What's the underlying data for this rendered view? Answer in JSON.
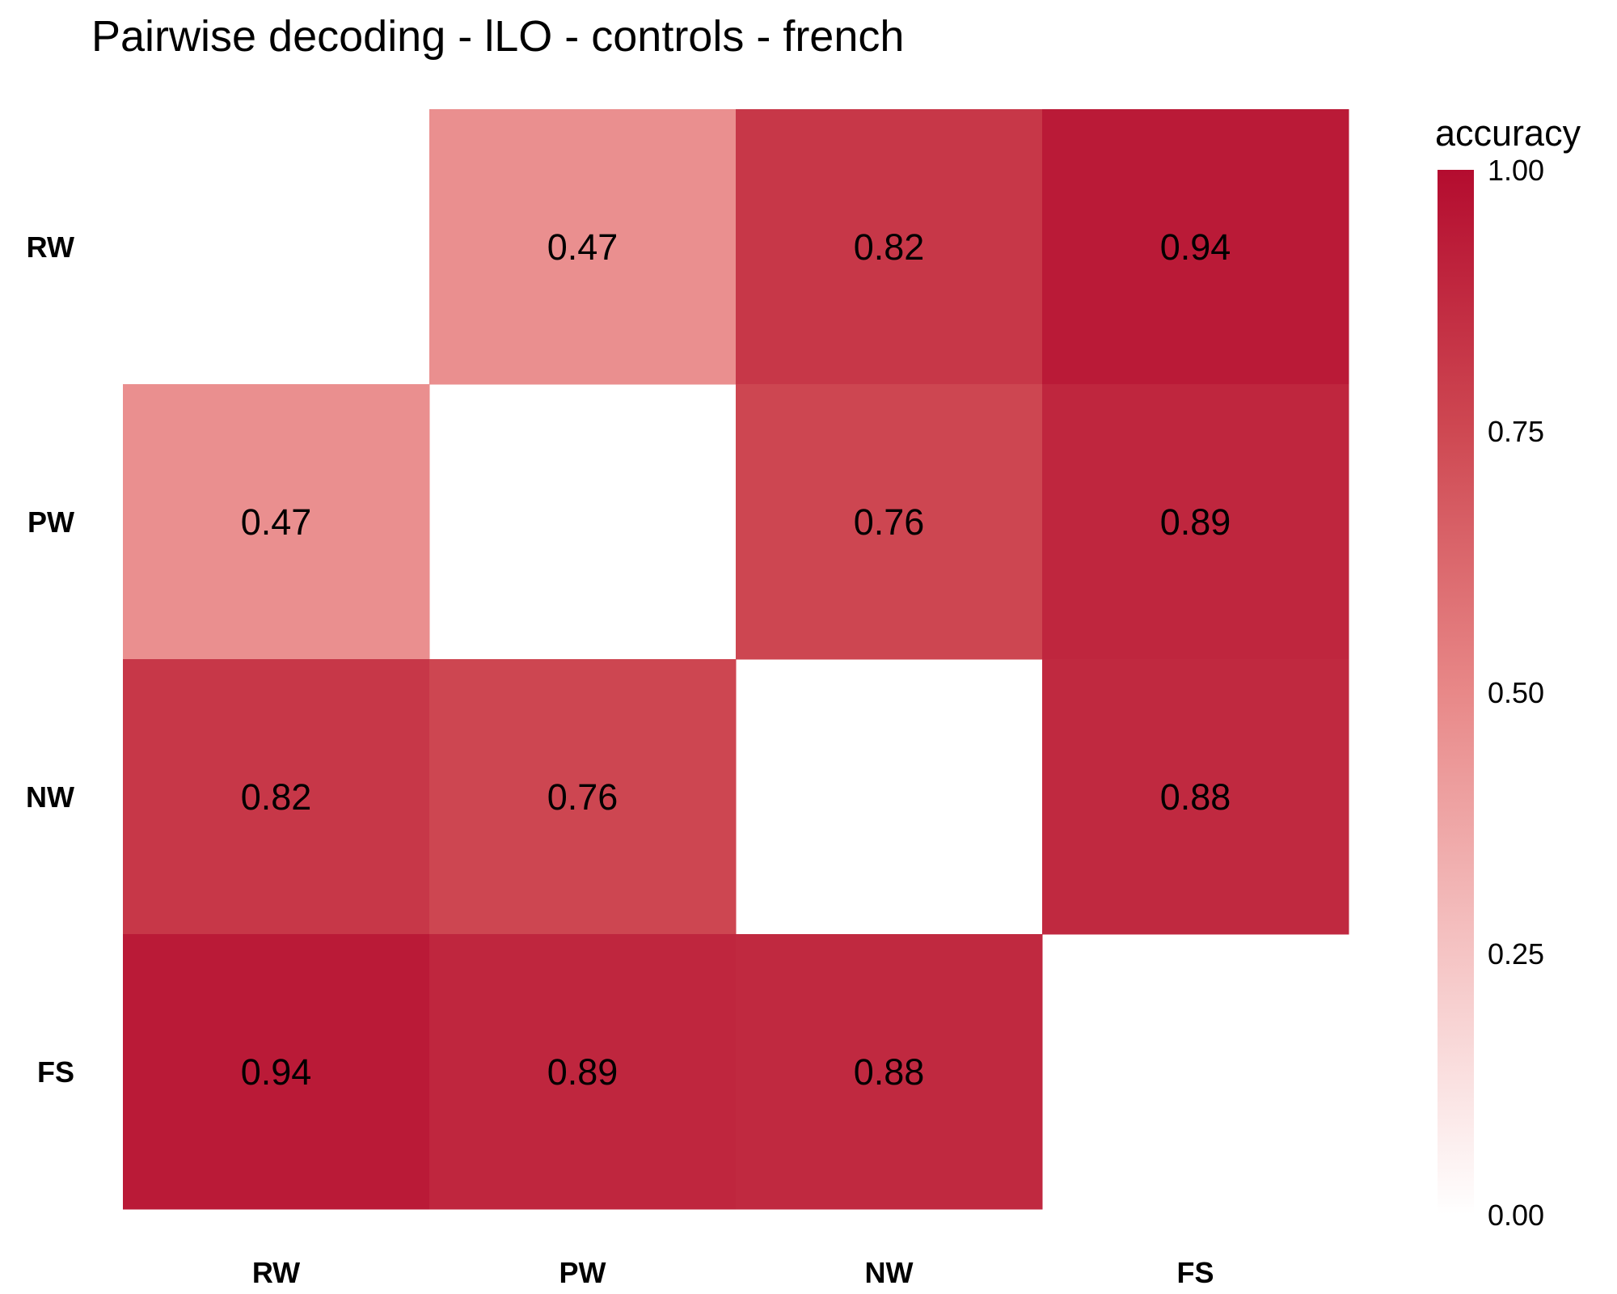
{
  "chart_data": {
    "type": "heatmap",
    "title": "Pairwise decoding - lLO - controls - french",
    "xlabel": "",
    "ylabel": "",
    "x_categories": [
      "RW",
      "PW",
      "NW",
      "FS"
    ],
    "y_categories": [
      "RW",
      "PW",
      "NW",
      "FS"
    ],
    "values": [
      [
        null,
        0.47,
        0.82,
        0.94
      ],
      [
        0.47,
        null,
        0.76,
        0.89
      ],
      [
        0.82,
        0.76,
        null,
        0.88
      ],
      [
        0.94,
        0.89,
        0.88,
        null
      ]
    ],
    "value_labels": [
      [
        null,
        "0.47",
        "0.82",
        "0.94"
      ],
      [
        "0.47",
        null,
        "0.76",
        "0.89"
      ],
      [
        "0.82",
        "0.76",
        null,
        "0.88"
      ],
      [
        "0.94",
        "0.89",
        "0.88",
        null
      ]
    ],
    "colorbar": {
      "title": "accuracy",
      "range": [
        0,
        1
      ],
      "ticks": [
        0,
        0.25,
        0.5,
        0.75,
        1
      ],
      "tick_labels": [
        "0.00",
        "0.25",
        "0.50",
        "0.75",
        "1.00"
      ],
      "low_color": "#ffffff",
      "high_color": "#b40c2f"
    },
    "grid": false,
    "legend_position": "right"
  }
}
